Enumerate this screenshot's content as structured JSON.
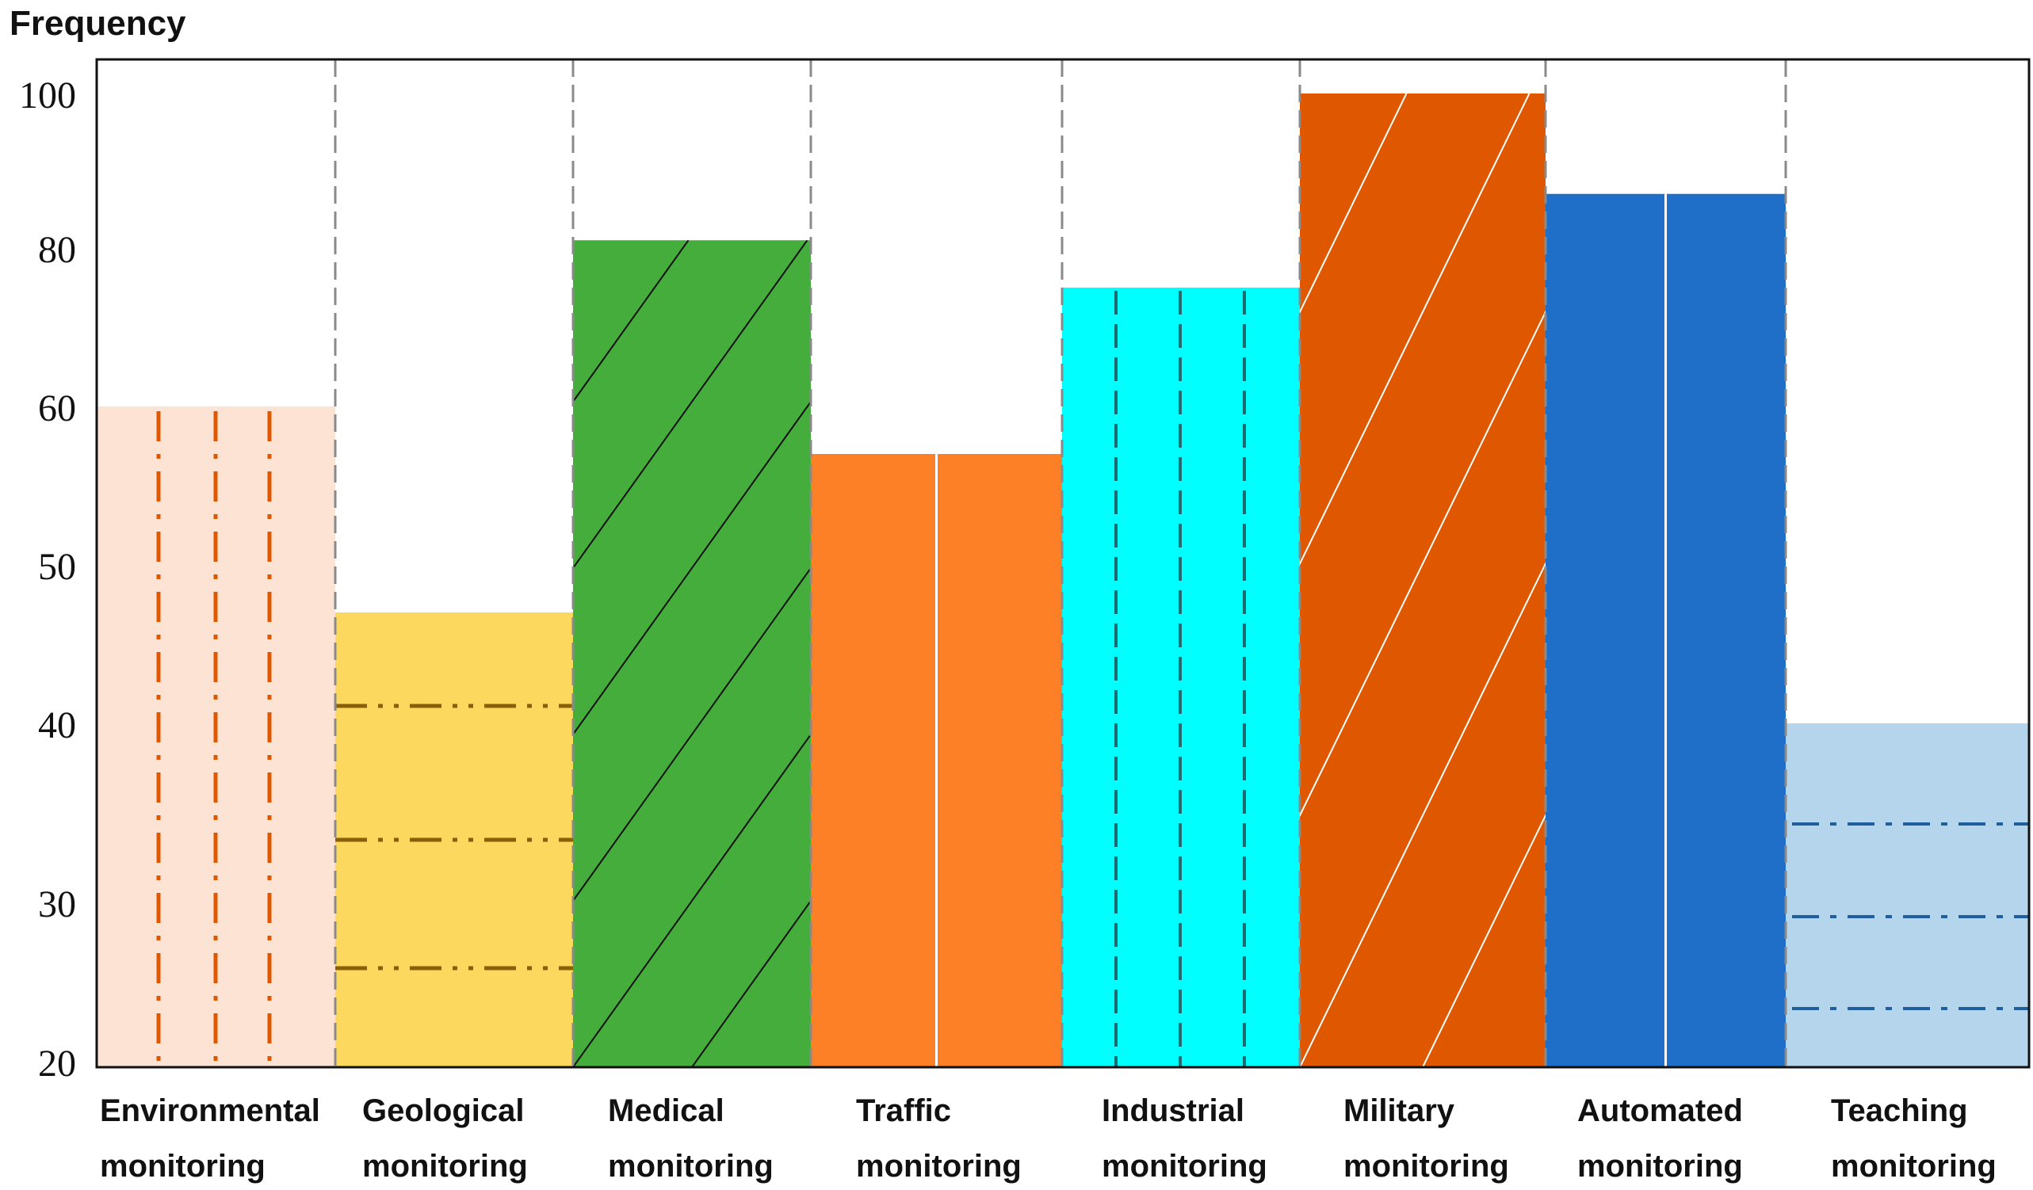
{
  "chart_data": {
    "type": "bar",
    "title": "",
    "ylabel": "Frequency",
    "xlabel": "",
    "yticks": [
      "100",
      "80",
      "60",
      "50",
      "40",
      "30",
      "20"
    ],
    "categories": [
      [
        "Environmental",
        "monitoring"
      ],
      [
        "Geological",
        "monitoring"
      ],
      [
        "Medical",
        "monitoring"
      ],
      [
        "Traffic",
        "monitoring"
      ],
      [
        "Industrial",
        "monitoring"
      ],
      [
        "Military",
        "monitoring"
      ],
      [
        "Automated",
        "monitoring"
      ],
      [
        "Teaching",
        "monitoring"
      ]
    ],
    "values": [
      60,
      47,
      81,
      57,
      75,
      100,
      87,
      40
    ],
    "colors": [
      "#fde3d3",
      "#fdd85f",
      "#45ad3b",
      "#fd7f26",
      "#00ffff",
      "#df5800",
      "#1f6fc8",
      "#b5d5ed"
    ],
    "patterns": [
      "vertical-dashdot",
      "horizontal-dashdotdot",
      "diagonal-lines",
      "vertical-center-line",
      "vertical-dashed",
      "diagonal-lines-white",
      "vertical-center-line",
      "horizontal-dashdot"
    ],
    "grid": "vertical-dashed-separators"
  }
}
